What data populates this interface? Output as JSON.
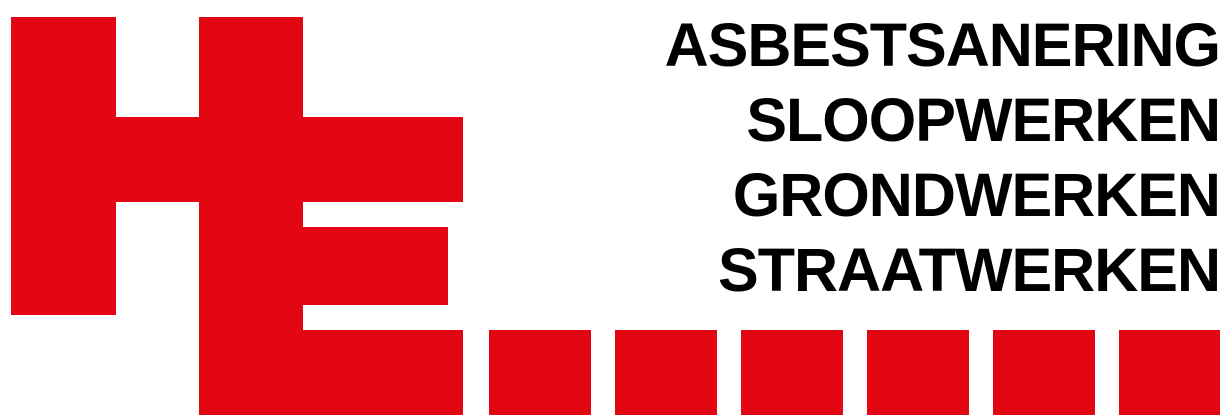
{
  "brand": {
    "logo_mark": "HE",
    "accent_color": "#E30613",
    "text_color": "#000000"
  },
  "services": [
    {
      "label": "ASBESTSANERING"
    },
    {
      "label": "SLOOPWERKEN"
    },
    {
      "label": "GRONDWERKEN"
    },
    {
      "label": "STRAATWERKEN"
    }
  ]
}
